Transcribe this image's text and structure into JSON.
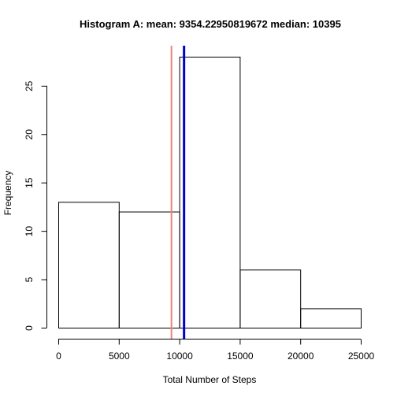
{
  "chart_data": {
    "type": "bar",
    "title": "Histogram A: mean: 9354.22950819672  median: 10395",
    "xlabel": "Total Number of Steps",
    "ylabel": "Frequency",
    "bins": [
      {
        "from": 0,
        "to": 5000,
        "count": 13
      },
      {
        "from": 5000,
        "to": 10000,
        "count": 12
      },
      {
        "from": 10000,
        "to": 15000,
        "count": 28
      },
      {
        "from": 15000,
        "to": 20000,
        "count": 6
      },
      {
        "from": 20000,
        "to": 25000,
        "count": 2
      }
    ],
    "xlim": [
      0,
      25000
    ],
    "ylim": [
      0,
      28
    ],
    "x_ticks": [
      0,
      5000,
      10000,
      15000,
      20000,
      25000
    ],
    "y_ticks": [
      0,
      5,
      10,
      15,
      20,
      25
    ],
    "reference_lines": [
      {
        "value": 9354.22950819672,
        "color": "#f08080"
      },
      {
        "value": 10395,
        "color": "#0000cc"
      }
    ],
    "grid": false
  }
}
